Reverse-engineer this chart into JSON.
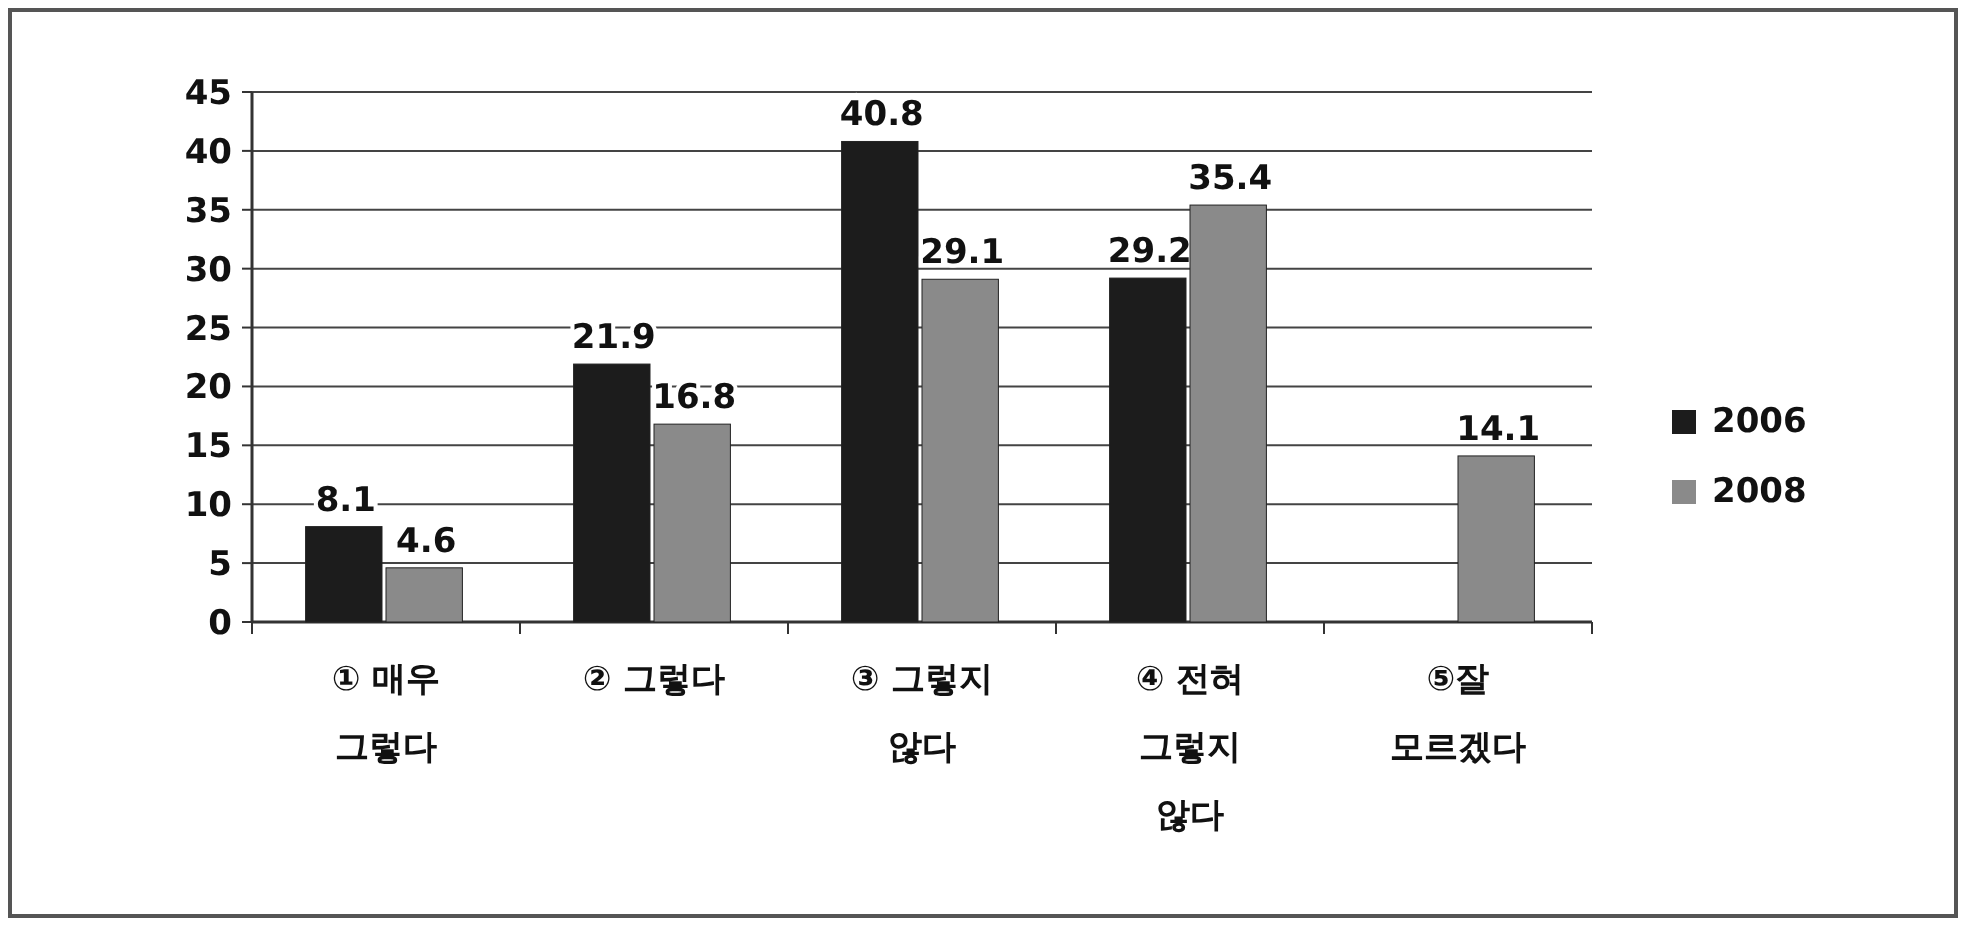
{
  "chart_data": {
    "type": "bar",
    "categories": [
      "① 매우 그렇다",
      "② 그렇다",
      "③ 그렇지 않다",
      "④ 전혀 그렇지 않다",
      "⑤잘 모르겠다"
    ],
    "series": [
      {
        "name": "2006",
        "color": "#1c1c1c",
        "values": [
          8.1,
          21.9,
          40.8,
          29.2,
          null
        ]
      },
      {
        "name": "2008",
        "color": "#8a8a8a",
        "values": [
          4.6,
          16.8,
          29.1,
          35.4,
          14.1
        ]
      }
    ],
    "ylim": [
      0,
      45
    ],
    "yticks": [
      0,
      5,
      10,
      15,
      20,
      25,
      30,
      35,
      40,
      45
    ],
    "grid": "y",
    "legend": "right",
    "data_labels": true
  }
}
